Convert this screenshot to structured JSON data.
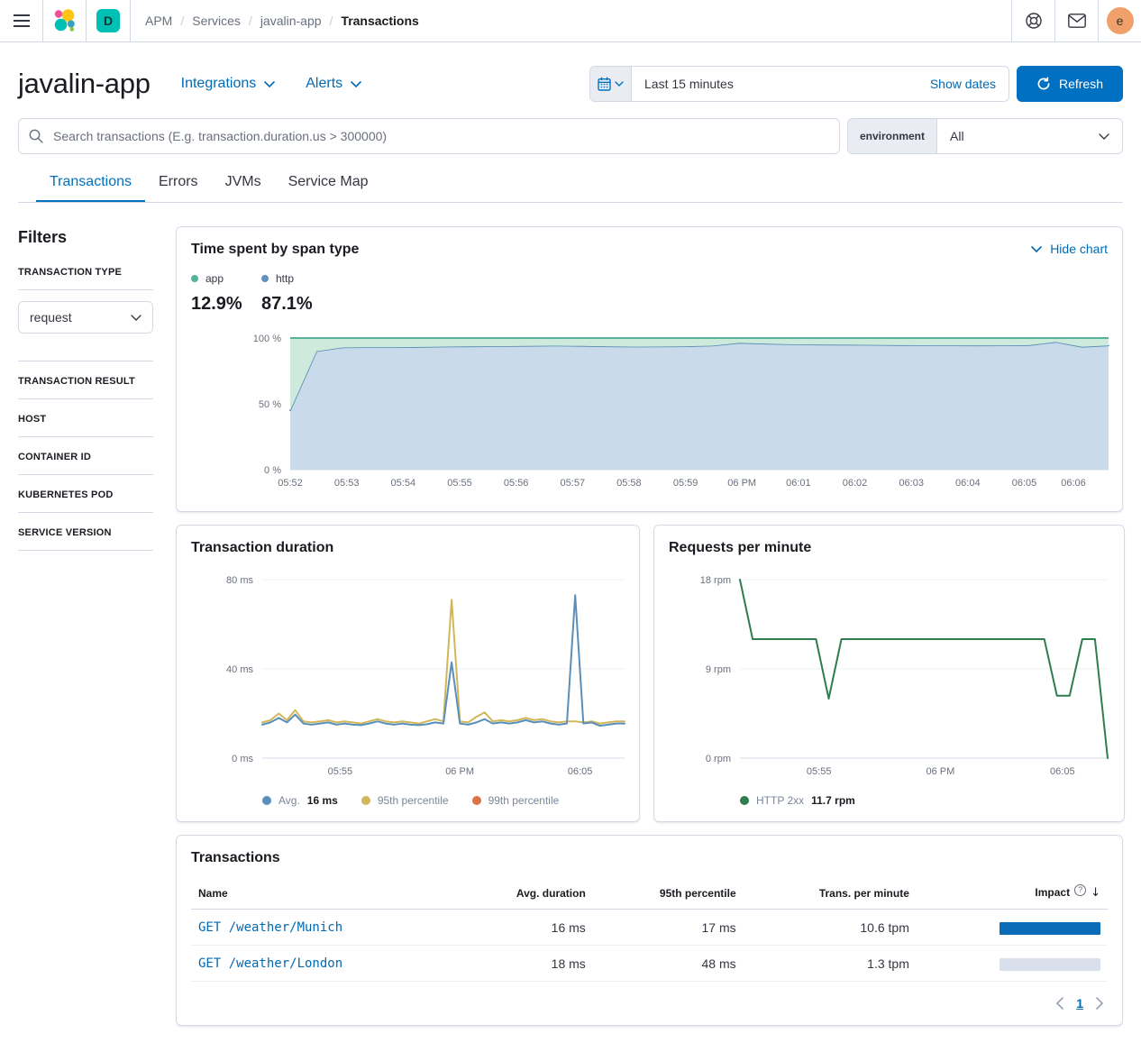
{
  "topbar": {
    "breadcrumbs": [
      "APM",
      "Services",
      "javalin-app"
    ],
    "current": "Transactions",
    "space_initial": "D",
    "avatar_initial": "e"
  },
  "header": {
    "title": "javalin-app",
    "integrations_label": "Integrations",
    "alerts_label": "Alerts",
    "time_range": "Last 15 minutes",
    "show_dates_label": "Show dates",
    "refresh_label": "Refresh"
  },
  "search": {
    "placeholder": "Search transactions (E.g. transaction.duration.us > 300000)",
    "environment_label": "environment",
    "environment_value": "All"
  },
  "tabs": [
    {
      "label": "Transactions",
      "active": true
    },
    {
      "label": "Errors",
      "active": false
    },
    {
      "label": "JVMs",
      "active": false
    },
    {
      "label": "Service Map",
      "active": false
    }
  ],
  "filters": {
    "heading": "Filters",
    "sections": [
      {
        "label": "TRANSACTION TYPE",
        "value": "request"
      },
      {
        "label": "TRANSACTION RESULT"
      },
      {
        "label": "HOST"
      },
      {
        "label": "CONTAINER ID"
      },
      {
        "label": "KUBERNETES POD"
      },
      {
        "label": "SERVICE VERSION"
      }
    ]
  },
  "span_chart": {
    "title": "Time spent by span type",
    "hide_chart_label": "Hide chart",
    "legend": [
      {
        "label": "app",
        "color": "#54b399",
        "pct": "12.9%"
      },
      {
        "label": "http",
        "color": "#6092c0",
        "pct": "87.1%"
      }
    ]
  },
  "duration_chart": {
    "title": "Transaction duration",
    "legend": [
      {
        "label": "Avg.",
        "value": "16 ms",
        "color": "#5a8fbb"
      },
      {
        "label": "95th percentile",
        "value": "",
        "color": "#d2b75a"
      },
      {
        "label": "99th percentile",
        "value": "",
        "color": "#dd7147"
      }
    ]
  },
  "rpm_chart": {
    "title": "Requests per minute",
    "legend": [
      {
        "label": "HTTP 2xx",
        "value": "11.7 rpm",
        "color": "#2f7d4f"
      }
    ]
  },
  "table": {
    "title": "Transactions",
    "columns": [
      "Name",
      "Avg. duration",
      "95th percentile",
      "Trans. per minute",
      "Impact"
    ],
    "rows": [
      {
        "name": "GET /weather/Munich",
        "avg_duration": "16 ms",
        "p95": "17 ms",
        "tpm": "10.6 tpm",
        "impact": 1
      },
      {
        "name": "GET /weather/London",
        "avg_duration": "18 ms",
        "p95": "48 ms",
        "tpm": "1.3 tpm",
        "impact": 0
      }
    ],
    "page": "1"
  },
  "icons": {
    "menu": "hamburger",
    "help": "lifebuoy",
    "mail": "envelope",
    "calendar": "calendar",
    "refresh": "circular-arrow",
    "search": "magnifier",
    "chevron": "chevron-down",
    "question": "question-in-circle",
    "sort": "arrow-down",
    "prev": "chevron-left",
    "next": "chevron-right"
  },
  "chart_data": [
    {
      "id": "span",
      "type": "area",
      "stacked": true,
      "unit": "percent",
      "title": "Time spent by span type",
      "ylim": [
        0,
        100
      ],
      "grid": true,
      "yticks": [
        {
          "v": 0,
          "label": "0 %"
        },
        {
          "v": 50,
          "label": "50 %"
        },
        {
          "v": 100,
          "label": "100 %"
        }
      ],
      "xticks": [
        {
          "f": 0.0,
          "label": "05:52"
        },
        {
          "f": 0.069,
          "label": "05:53"
        },
        {
          "f": 0.138,
          "label": "05:54"
        },
        {
          "f": 0.207,
          "label": "05:55"
        },
        {
          "f": 0.276,
          "label": "05:56"
        },
        {
          "f": 0.345,
          "label": "05:57"
        },
        {
          "f": 0.414,
          "label": "05:58"
        },
        {
          "f": 0.483,
          "label": "05:59"
        },
        {
          "f": 0.552,
          "label": "06 PM"
        },
        {
          "f": 0.621,
          "label": "06:01"
        },
        {
          "f": 0.69,
          "label": "06:02"
        },
        {
          "f": 0.759,
          "label": "06:03"
        },
        {
          "f": 0.828,
          "label": "06:04"
        },
        {
          "f": 0.897,
          "label": "06:05"
        },
        {
          "f": 0.957,
          "label": "06:06"
        }
      ],
      "layout": {
        "margins": {
          "l": 110,
          "r": 1,
          "t": 10,
          "b": 30
        }
      },
      "series": [
        {
          "name": "http",
          "share_of_total": "87.1%",
          "color": "#5387b0",
          "width": 1.6,
          "fill": "#c9daea",
          "fillMode": "down",
          "values": [
            45,
            90,
            92.8,
            93,
            93,
            93.2,
            93.5,
            93.6,
            93.8,
            94,
            94.2,
            94,
            93.6,
            93.4,
            93.5,
            93.7,
            94.2,
            96.3,
            95.7,
            95.2,
            95,
            94.9,
            94.8,
            94.6,
            94.5,
            94.4,
            94.3,
            94.4,
            94.6,
            97,
            93.3,
            94.3
          ]
        },
        {
          "name": "app",
          "share_of_total": "12.9%",
          "color": "#54b399",
          "fill": "#cdeadd",
          "fillMode": "up",
          "lineAt": "top",
          "boundary": "http",
          "note": "app share = 100% minus http share (stacked remainder)"
        }
      ]
    },
    {
      "id": "duration",
      "type": "line",
      "title": "Transaction duration",
      "ylabel_unit": "ms",
      "ylim": [
        0,
        80
      ],
      "grid": true,
      "yticks": [
        {
          "v": 0,
          "label": "0 ms"
        },
        {
          "v": 40,
          "label": "40 ms"
        },
        {
          "v": 80,
          "label": "80 ms"
        }
      ],
      "xticks": [
        {
          "f": 0.215,
          "label": "05:55"
        },
        {
          "f": 0.545,
          "label": "06 PM"
        },
        {
          "f": 0.877,
          "label": "06:05"
        }
      ],
      "layout": {
        "margins": {
          "l": 79,
          "r": 2,
          "t": 10,
          "b": 30
        }
      },
      "series": [
        {
          "name": "95th percentile",
          "color": "#d2b75a",
          "width": 2,
          "values": [
            16,
            17,
            20,
            17,
            21.5,
            16.5,
            16,
            16.5,
            17,
            16,
            16.5,
            16,
            15.5,
            16.5,
            17.5,
            16.5,
            16,
            16.5,
            16,
            15.5,
            16.5,
            17.5,
            16.5,
            71,
            16.5,
            16,
            18.5,
            20.5,
            16.5,
            17,
            16.5,
            17,
            18,
            17,
            17.5,
            16.5,
            16,
            16.5,
            16.5,
            16,
            16.5,
            15.5,
            16,
            16.5,
            16.5
          ]
        },
        {
          "name": "Avg.",
          "avg_label": "16 ms",
          "color": "#5a8fbb",
          "width": 2,
          "values": [
            15,
            16,
            18,
            16,
            19.5,
            15.5,
            15,
            15.5,
            16,
            15,
            15.5,
            15,
            14.8,
            15.5,
            16.5,
            15.5,
            15,
            15.5,
            15,
            14.8,
            15.2,
            16,
            15.5,
            43,
            15.5,
            15,
            16,
            17.5,
            15.5,
            16,
            15.5,
            16,
            17,
            16,
            16.5,
            15.5,
            15,
            15.5,
            73,
            15.5,
            16,
            14.5,
            15,
            15.5,
            15.5
          ]
        }
      ]
    },
    {
      "id": "rpm",
      "type": "line",
      "title": "Requests per minute",
      "ylabel_unit": "rpm",
      "ylim": [
        0,
        18
      ],
      "grid": true,
      "yticks": [
        {
          "v": 0,
          "label": "0 rpm"
        },
        {
          "v": 9,
          "label": "9 rpm"
        },
        {
          "v": 18,
          "label": "18 rpm"
        }
      ],
      "xticks": [
        {
          "f": 0.215,
          "label": "05:55"
        },
        {
          "f": 0.545,
          "label": "06 PM"
        },
        {
          "f": 0.877,
          "label": "06:05"
        }
      ],
      "layout": {
        "margins": {
          "l": 79,
          "r": 2,
          "t": 10,
          "b": 30
        }
      },
      "series": [
        {
          "name": "HTTP 2xx",
          "avg_label": "11.7 rpm",
          "color": "#2f7d4f",
          "width": 2,
          "values": [
            18,
            12,
            12,
            12,
            12,
            12,
            12,
            6,
            12,
            12,
            12,
            12,
            12,
            12,
            12,
            12,
            12,
            12,
            12,
            12,
            12,
            12,
            12,
            12,
            12,
            6.3,
            6.3,
            12,
            12,
            0
          ]
        }
      ]
    }
  ]
}
